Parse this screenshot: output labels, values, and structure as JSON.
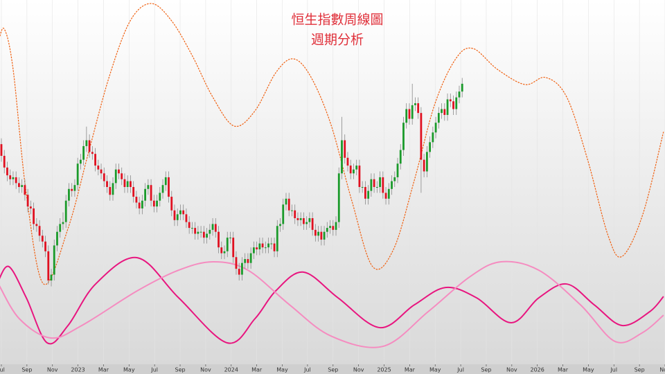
{
  "chart_data": {
    "type": "candlestick",
    "title": "恒生指數周線圖",
    "subtitle": "週期分析",
    "title_color": "#e0303a",
    "up_color": "#1a9a2a",
    "down_color": "#e01020",
    "grid": true,
    "xlim": [
      -0.47,
      226.1
    ],
    "ylim": [
      10000,
      29200
    ],
    "xticks": [
      {
        "value": 0,
        "label": "Jul"
      },
      {
        "value": 8.7,
        "label": "Sep"
      },
      {
        "value": 17.4,
        "label": "Nov"
      },
      {
        "value": 26.1,
        "label": "2023"
      },
      {
        "value": 34.8,
        "label": "Mar"
      },
      {
        "value": 43.5,
        "label": "May"
      },
      {
        "value": 52.2,
        "label": "Jul"
      },
      {
        "value": 60.9,
        "label": "Sep"
      },
      {
        "value": 69.6,
        "label": "Nov"
      },
      {
        "value": 78.3,
        "label": "2024"
      },
      {
        "value": 87,
        "label": "Mar"
      },
      {
        "value": 95.7,
        "label": "May"
      },
      {
        "value": 104.3,
        "label": "Jul"
      },
      {
        "value": 113,
        "label": "Sep"
      },
      {
        "value": 121.7,
        "label": "Nov"
      },
      {
        "value": 130.4,
        "label": "2025"
      },
      {
        "value": 139.1,
        "label": "Mar"
      },
      {
        "value": 147.8,
        "label": "May"
      },
      {
        "value": 156.5,
        "label": "Jul"
      },
      {
        "value": 165.2,
        "label": "Sep"
      },
      {
        "value": 173.9,
        "label": "Nov"
      },
      {
        "value": 182.6,
        "label": "2026"
      },
      {
        "value": 191.3,
        "label": "Mar"
      },
      {
        "value": 200,
        "label": "May"
      },
      {
        "value": 208.7,
        "label": "Jul"
      },
      {
        "value": 217.4,
        "label": "Sep"
      },
      {
        "value": 226.1,
        "label": "Nov"
      }
    ],
    "x": [
      0,
      1,
      2,
      3,
      4,
      5,
      6,
      7,
      8,
      9,
      10,
      11,
      12,
      13,
      14,
      15,
      16,
      17,
      18,
      19,
      20,
      21,
      22,
      23,
      24,
      25,
      26,
      27,
      28,
      29,
      30,
      31,
      32,
      33,
      34,
      35,
      36,
      37,
      38,
      39,
      40,
      41,
      42,
      43,
      44,
      45,
      46,
      47,
      48,
      49,
      50,
      51,
      52,
      53,
      54,
      55,
      56,
      57,
      58,
      59,
      60,
      61,
      62,
      63,
      64,
      65,
      66,
      67,
      68,
      69,
      70,
      71,
      72,
      73,
      74,
      75,
      76,
      77,
      78,
      79,
      80,
      81,
      82,
      83,
      84,
      85,
      86,
      87,
      88,
      89,
      90,
      91,
      92,
      93,
      94,
      95,
      96,
      97,
      98,
      99,
      100,
      101,
      102,
      103,
      104,
      105,
      106,
      107,
      108,
      109,
      110,
      111,
      112,
      113,
      114,
      115,
      116,
      117,
      118,
      119,
      120,
      121,
      122,
      123,
      124,
      125,
      126,
      127,
      128,
      129,
      130,
      131,
      132,
      133,
      134,
      135,
      136,
      137,
      138,
      139,
      140,
      141,
      142,
      143,
      144,
      145,
      146,
      147,
      148,
      149,
      150,
      151,
      152,
      153,
      154,
      155,
      156,
      157
    ],
    "open": [
      21800,
      21200,
      20600,
      20200,
      20000,
      20100,
      19800,
      19600,
      19700,
      19200,
      18600,
      18500,
      17700,
      17600,
      17100,
      16800,
      16300,
      14800,
      15100,
      16600,
      17300,
      17700,
      17800,
      18900,
      19500,
      19400,
      19700,
      20800,
      21000,
      21700,
      22000,
      21400,
      21300,
      20700,
      20500,
      20300,
      19900,
      19600,
      19200,
      19800,
      20500,
      20300,
      20000,
      19600,
      19900,
      19600,
      19100,
      18800,
      18500,
      18900,
      19500,
      19700,
      18900,
      18600,
      18900,
      19300,
      19700,
      20100,
      19100,
      18400,
      17900,
      18200,
      18400,
      18200,
      17800,
      17500,
      17500,
      17200,
      17300,
      17300,
      17000,
      17200,
      17400,
      17700,
      17300,
      16500,
      16200,
      16300,
      17000,
      17000,
      16000,
      15400,
      15100,
      15700,
      15900,
      15700,
      16200,
      16500,
      16400,
      16700,
      16500,
      16500,
      16700,
      16700,
      16300,
      17600,
      17700,
      18700,
      19000,
      18400,
      18400,
      18000,
      17900,
      18000,
      17700,
      17800,
      18000,
      17400,
      17100,
      17300,
      16900,
      17300,
      17500,
      17600,
      17400,
      17800,
      20300,
      22000,
      21100,
      20700,
      20300,
      20500,
      20700,
      19600,
      19600,
      19000,
      19400,
      20000,
      19600,
      19600,
      20100,
      19300,
      19000,
      19500,
      19900,
      20100,
      20800,
      21500,
      22900,
      23600,
      23100,
      23800,
      23900,
      23400,
      21000,
      20400,
      21400,
      21900,
      22400,
      22900,
      23400,
      23600,
      23300,
      24100,
      24000,
      23600,
      24200,
      24500
    ],
    "high": [
      22100,
      21500,
      20900,
      20500,
      20400,
      20400,
      20100,
      20000,
      20000,
      19500,
      18900,
      18800,
      18000,
      17900,
      17400,
      17100,
      16600,
      15400,
      16900,
      17600,
      18000,
      18300,
      19200,
      19800,
      19800,
      20000,
      21100,
      21300,
      22000,
      22700,
      22300,
      21700,
      21600,
      21000,
      20800,
      20600,
      20200,
      19900,
      20100,
      20800,
      20800,
      20600,
      20300,
      20200,
      20200,
      19900,
      19400,
      19100,
      19200,
      19800,
      20000,
      20000,
      19200,
      19200,
      19600,
      20000,
      20400,
      20400,
      19400,
      18700,
      18500,
      18700,
      18700,
      18500,
      18100,
      17800,
      17800,
      17600,
      17600,
      17600,
      17500,
      17700,
      18000,
      18000,
      17600,
      16800,
      16600,
      17300,
      17300,
      17300,
      16300,
      15700,
      16000,
      16200,
      16200,
      16500,
      16800,
      16800,
      17000,
      17000,
      16800,
      17000,
      17000,
      17000,
      17900,
      18000,
      19000,
      19300,
      19300,
      18700,
      18700,
      18300,
      18300,
      18300,
      18100,
      18300,
      18300,
      17700,
      17600,
      17600,
      17600,
      17800,
      17900,
      17900,
      18100,
      20600,
      23200,
      22300,
      21400,
      21000,
      20800,
      21000,
      21000,
      19900,
      19900,
      19700,
      20300,
      20300,
      19900,
      20400,
      20400,
      19600,
      19800,
      20200,
      20400,
      21100,
      21800,
      23200,
      23900,
      23900,
      24900,
      24200,
      24200,
      23700,
      21300,
      21700,
      22200,
      22700,
      23200,
      23700,
      23900,
      23900,
      24400,
      24400,
      24300,
      24500,
      24800,
      25200
    ],
    "low": [
      20900,
      20300,
      19900,
      19700,
      19700,
      19500,
      19300,
      19300,
      18900,
      18300,
      18200,
      17400,
      17300,
      16800,
      16500,
      16000,
      14600,
      14500,
      14800,
      16300,
      17000,
      17400,
      17500,
      18600,
      19100,
      19100,
      19400,
      20500,
      20700,
      21400,
      21100,
      21000,
      20400,
      20200,
      20000,
      19600,
      19300,
      18900,
      18900,
      19500,
      20000,
      19700,
      19300,
      19300,
      19300,
      18800,
      18500,
      18200,
      18200,
      18600,
      19200,
      18600,
      18300,
      18300,
      18600,
      19000,
      19400,
      18800,
      18100,
      17600,
      17600,
      17900,
      17900,
      17500,
      17200,
      17200,
      16900,
      16900,
      17000,
      16700,
      16700,
      16900,
      17100,
      17000,
      16200,
      15900,
      15900,
      16000,
      16700,
      15700,
      15100,
      14800,
      14800,
      15400,
      15400,
      15400,
      15900,
      16100,
      16100,
      16200,
      16200,
      16200,
      16400,
      16000,
      16000,
      17300,
      17400,
      18400,
      18100,
      18100,
      17700,
      17600,
      17600,
      17400,
      17400,
      17500,
      17100,
      16800,
      16800,
      16600,
      16600,
      17000,
      17200,
      17100,
      17100,
      17500,
      20000,
      20800,
      20400,
      20000,
      20000,
      20200,
      19300,
      19300,
      18700,
      18700,
      19100,
      19300,
      19300,
      19300,
      19000,
      18700,
      18700,
      19200,
      19600,
      19800,
      20500,
      21200,
      22600,
      22800,
      22800,
      23500,
      23100,
      19300,
      20100,
      20100,
      21100,
      21600,
      22100,
      22600,
      23100,
      23000,
      23000,
      23700,
      23300,
      23300,
      23900,
      24200
    ],
    "close": [
      21200,
      20600,
      20200,
      20000,
      20100,
      19800,
      19600,
      19700,
      19200,
      18600,
      18500,
      17700,
      17600,
      17100,
      16800,
      16300,
      14800,
      15100,
      16600,
      17300,
      17700,
      17800,
      18900,
      19500,
      19400,
      19700,
      20800,
      21000,
      21700,
      22000,
      21400,
      21300,
      20700,
      20500,
      20300,
      19900,
      19600,
      19200,
      19800,
      20500,
      20300,
      20000,
      19600,
      19900,
      19600,
      19100,
      18800,
      18500,
      18900,
      19500,
      19700,
      18900,
      18600,
      18900,
      19300,
      19700,
      20100,
      19100,
      18400,
      17900,
      18200,
      18400,
      18200,
      17800,
      17500,
      17500,
      17200,
      17300,
      17300,
      17000,
      17200,
      17400,
      17700,
      17300,
      16500,
      16200,
      16300,
      17000,
      17000,
      16000,
      15400,
      15100,
      15700,
      15900,
      15700,
      16200,
      16500,
      16400,
      16700,
      16500,
      16500,
      16700,
      16700,
      16300,
      17600,
      17700,
      18700,
      19000,
      18400,
      18400,
      18000,
      17900,
      18000,
      17700,
      17800,
      18000,
      17400,
      17100,
      17300,
      16900,
      17300,
      17500,
      17600,
      17400,
      17800,
      20300,
      22000,
      21100,
      20700,
      20300,
      20500,
      20700,
      19600,
      19600,
      19000,
      19400,
      20000,
      19600,
      19600,
      20100,
      19300,
      19000,
      19500,
      19900,
      20100,
      20800,
      21500,
      22900,
      23600,
      23100,
      23800,
      23900,
      23400,
      21000,
      20400,
      21400,
      21900,
      22400,
      22900,
      23400,
      23600,
      23300,
      24100,
      24000,
      23600,
      24200,
      24500,
      24900
    ],
    "cycles": [
      {
        "color": "#f06010",
        "dashed": true,
        "x": [
          -1,
          1,
          4,
          8.5,
          14.4,
          22.7,
          29.7,
          36.8,
          43.9,
          51,
          58,
          65,
          72,
          79.3,
          86.4,
          93.5,
          99.4,
          105.3,
          112.3,
          119.4,
          126.5,
          133.6,
          140.7,
          147.7,
          154.8,
          160.7,
          169,
          178.4,
          185.5,
          192.6,
          199.7,
          206.7,
          211.5,
          218.5,
          225.6
        ],
        "values": [
          27070,
          27710,
          25640,
          19240,
          14620,
          17470,
          21380,
          25290,
          28130,
          29020,
          28130,
          26350,
          24220,
          22730,
          23510,
          25470,
          26180,
          25290,
          22800,
          18890,
          15510,
          16400,
          19950,
          23870,
          26180,
          26710,
          25640,
          24860,
          25220,
          24220,
          21020,
          17110,
          16040,
          18180,
          22440
        ]
      },
      {
        "color": "#e8157f",
        "dashed": false,
        "x": [
          -1,
          2.6,
          8.5,
          15.6,
          22.7,
          32.1,
          46.3,
          60.4,
          76.9,
          86.4,
          93.5,
          102.9,
          114.7,
          128.9,
          140.7,
          151.3,
          161.9,
          173.7,
          183.1,
          192.6,
          202,
          211.5,
          220.9,
          225.6
        ],
        "values": [
          14800,
          15510,
          13910,
          11600,
          12490,
          14620,
          15970,
          13910,
          11600,
          12840,
          14270,
          15230,
          13910,
          12380,
          13550,
          14440,
          13910,
          12630,
          13910,
          14620,
          13550,
          12490,
          13200,
          13980
        ]
      },
      {
        "color": "#f58cc0",
        "dashed": false,
        "x": [
          -1,
          6.1,
          16.8,
          27.4,
          46.3,
          60.4,
          72.2,
          84,
          98.2,
          112.3,
          130,
          145.4,
          159.5,
          170.2,
          183.1,
          197.3,
          209.1,
          218.5,
          225.6
        ],
        "values": [
          14620,
          12840,
          11850,
          12490,
          14270,
          15330,
          15760,
          15330,
          13550,
          11950,
          11420,
          13200,
          14980,
          15760,
          15330,
          13550,
          11670,
          12130,
          13020
        ]
      }
    ]
  }
}
